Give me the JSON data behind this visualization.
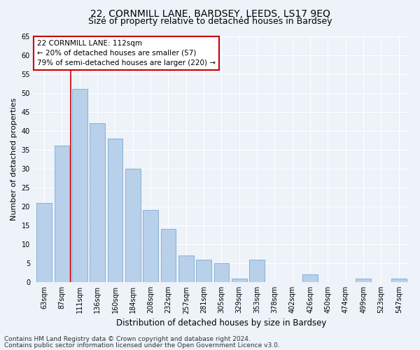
{
  "title1": "22, CORNMILL LANE, BARDSEY, LEEDS, LS17 9EQ",
  "title2": "Size of property relative to detached houses in Bardsey",
  "xlabel": "Distribution of detached houses by size in Bardsey",
  "ylabel": "Number of detached properties",
  "categories": [
    "63sqm",
    "87sqm",
    "111sqm",
    "136sqm",
    "160sqm",
    "184sqm",
    "208sqm",
    "232sqm",
    "257sqm",
    "281sqm",
    "305sqm",
    "329sqm",
    "353sqm",
    "378sqm",
    "402sqm",
    "426sqm",
    "450sqm",
    "474sqm",
    "499sqm",
    "523sqm",
    "547sqm"
  ],
  "values": [
    21,
    36,
    51,
    42,
    38,
    30,
    19,
    14,
    7,
    6,
    5,
    1,
    6,
    0,
    0,
    2,
    0,
    0,
    1,
    0,
    1
  ],
  "bar_color": "#b8d0ea",
  "bar_edge_color": "#7aaad0",
  "background_color": "#eef2f9",
  "grid_color": "#ffffff",
  "annotation_box_text": "22 CORNMILL LANE: 112sqm\n← 20% of detached houses are smaller (57)\n79% of semi-detached houses are larger (220) →",
  "annotation_box_color": "#ffffff",
  "annotation_box_edge": "#cc0000",
  "vline_color": "#cc0000",
  "ylim": [
    0,
    65
  ],
  "yticks": [
    0,
    5,
    10,
    15,
    20,
    25,
    30,
    35,
    40,
    45,
    50,
    55,
    60,
    65
  ],
  "footer1": "Contains HM Land Registry data © Crown copyright and database right 2024.",
  "footer2": "Contains public sector information licensed under the Open Government Licence v3.0.",
  "title1_fontsize": 10,
  "title2_fontsize": 9,
  "xlabel_fontsize": 8.5,
  "ylabel_fontsize": 8,
  "tick_fontsize": 7,
  "footer_fontsize": 6.5,
  "ann_fontsize": 7.5
}
